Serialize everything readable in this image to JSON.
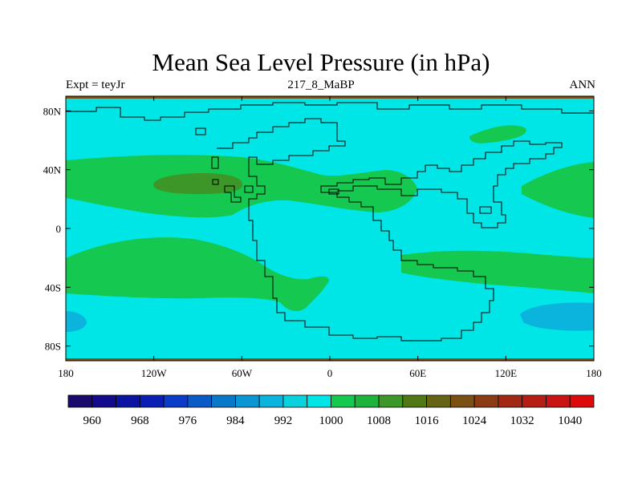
{
  "title": "Mean Sea Level Pressure (in hPa)",
  "left_label": "Expt = teyJr",
  "center_label": "217_8_MaBP",
  "right_label": "ANN",
  "lat_ticks": [
    {
      "value": 80,
      "label": "80N"
    },
    {
      "value": 40,
      "label": "40N"
    },
    {
      "value": 0,
      "label": "0"
    },
    {
      "value": -40,
      "label": "40S"
    },
    {
      "value": -80,
      "label": "80S"
    }
  ],
  "lon_ticks": [
    {
      "value": -180,
      "label": "180"
    },
    {
      "value": -120,
      "label": "120W"
    },
    {
      "value": -60,
      "label": "60W"
    },
    {
      "value": 0,
      "label": "0"
    },
    {
      "value": 60,
      "label": "60E"
    },
    {
      "value": 120,
      "label": "120E"
    },
    {
      "value": 180,
      "label": "180"
    }
  ],
  "colorbar": {
    "levels": [
      956,
      960,
      964,
      968,
      972,
      976,
      980,
      984,
      988,
      992,
      996,
      1000,
      1004,
      1008,
      1012,
      1016,
      1020,
      1024,
      1028,
      1032,
      1036,
      1040
    ],
    "colors": [
      "#1a0a6e",
      "#140a8c",
      "#0a14a0",
      "#0a1eb4",
      "#0a3cc8",
      "#0a5ac8",
      "#0a78c8",
      "#0a96d2",
      "#0ab4dc",
      "#0ad2dc",
      "#00e6e6",
      "#14c850",
      "#1eb43c",
      "#3c9628",
      "#507814",
      "#646414",
      "#7a5014",
      "#8c3c14",
      "#a02814",
      "#b41e14",
      "#c81414",
      "#dc0a0a"
    ],
    "labels": [
      "960",
      "968",
      "976",
      "984",
      "992",
      "1000",
      "1008",
      "1016",
      "1024",
      "1032",
      "1040"
    ],
    "label_levels": [
      960,
      968,
      976,
      984,
      992,
      1000,
      1008,
      1016,
      1024,
      1032,
      1040
    ]
  },
  "colors": {
    "background": "#00e6e6",
    "green": "#14c850",
    "dark_green": "#3c9628",
    "blue": "#0ab4dc",
    "polar_band": "#7a5014"
  }
}
